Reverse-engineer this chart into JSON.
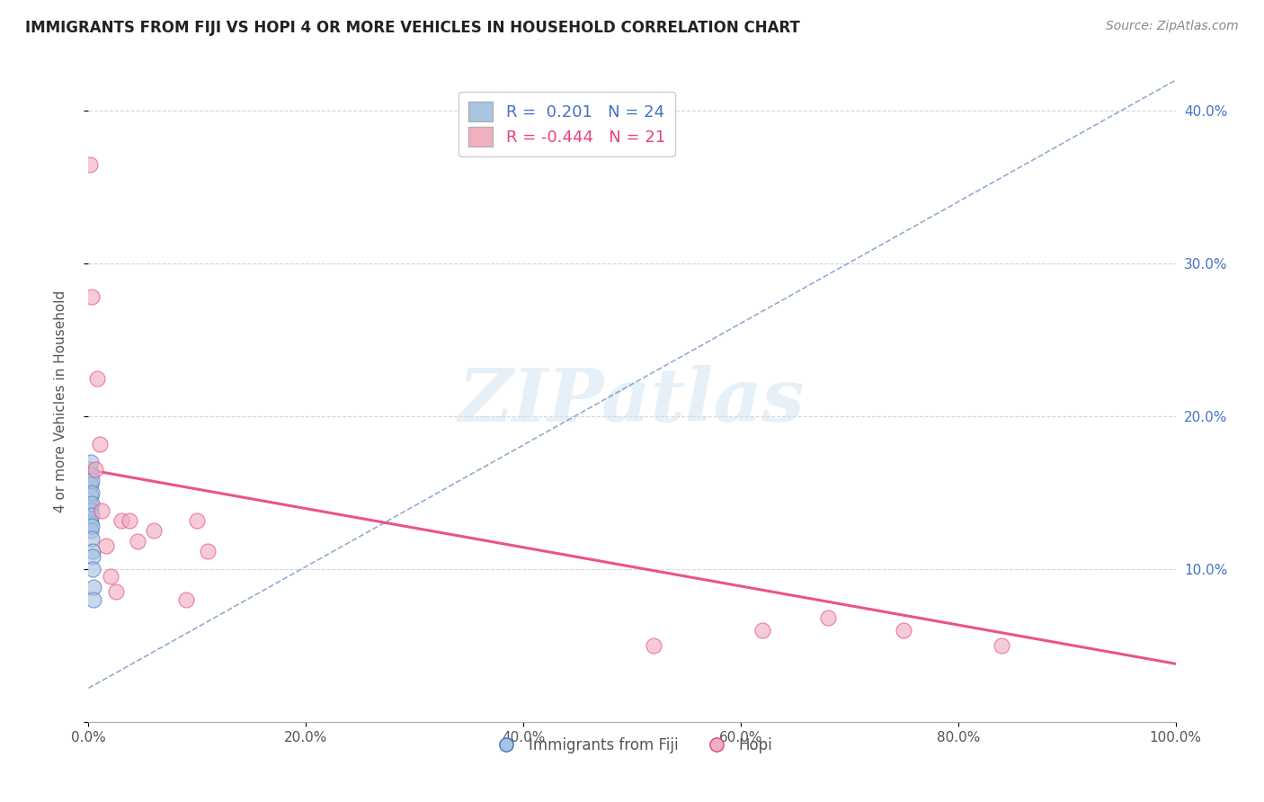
{
  "title": "IMMIGRANTS FROM FIJI VS HOPI 4 OR MORE VEHICLES IN HOUSEHOLD CORRELATION CHART",
  "source": "Source: ZipAtlas.com",
  "ylabel": "4 or more Vehicles in Household",
  "watermark": "ZIPatlas",
  "xlim": [
    0,
    1.0
  ],
  "ylim": [
    0,
    0.42
  ],
  "xticks": [
    0.0,
    0.2,
    0.4,
    0.6,
    0.8,
    1.0
  ],
  "yticks": [
    0.0,
    0.1,
    0.2,
    0.3,
    0.4
  ],
  "xtick_labels": [
    "0.0%",
    "20.0%",
    "40.0%",
    "60.0%",
    "80.0%",
    "100.0%"
  ],
  "ytick_labels": [
    "",
    "10.0%",
    "20.0%",
    "30.0%",
    "40.0%"
  ],
  "legend_r_fiji": "0.201",
  "legend_n_fiji": "24",
  "legend_r_hopi": "-0.444",
  "legend_n_hopi": "21",
  "fiji_color": "#a8c4e0",
  "hopi_color": "#f0b0c0",
  "fiji_line_color": "#4472c4",
  "hopi_line_color": "#e84080",
  "fiji_trendline_color": "#7090c0",
  "background_color": "#ffffff",
  "fiji_x": [
    0.001,
    0.001,
    0.001,
    0.001,
    0.001,
    0.002,
    0.002,
    0.002,
    0.002,
    0.002,
    0.002,
    0.002,
    0.002,
    0.003,
    0.003,
    0.003,
    0.003,
    0.003,
    0.003,
    0.004,
    0.004,
    0.004,
    0.005,
    0.005
  ],
  "fiji_y": [
    0.165,
    0.155,
    0.148,
    0.14,
    0.132,
    0.17,
    0.162,
    0.155,
    0.148,
    0.142,
    0.138,
    0.13,
    0.125,
    0.158,
    0.15,
    0.143,
    0.135,
    0.128,
    0.12,
    0.112,
    0.108,
    0.1,
    0.088,
    0.08
  ],
  "hopi_x": [
    0.001,
    0.003,
    0.006,
    0.008,
    0.01,
    0.012,
    0.016,
    0.02,
    0.025,
    0.03,
    0.038,
    0.045,
    0.06,
    0.09,
    0.1,
    0.11,
    0.52,
    0.62,
    0.68,
    0.75,
    0.84
  ],
  "hopi_y": [
    0.365,
    0.278,
    0.165,
    0.225,
    0.182,
    0.138,
    0.115,
    0.095,
    0.085,
    0.132,
    0.132,
    0.118,
    0.125,
    0.08,
    0.132,
    0.112,
    0.05,
    0.06,
    0.068,
    0.06,
    0.05
  ],
  "fiji_trend_x0": 0.0,
  "fiji_trend_x1": 1.0,
  "fiji_trend_y0": 0.022,
  "fiji_trend_y1": 0.42,
  "hopi_trend_x0": 0.0,
  "hopi_trend_x1": 1.0,
  "hopi_trend_y0": 0.165,
  "hopi_trend_y1": 0.038
}
